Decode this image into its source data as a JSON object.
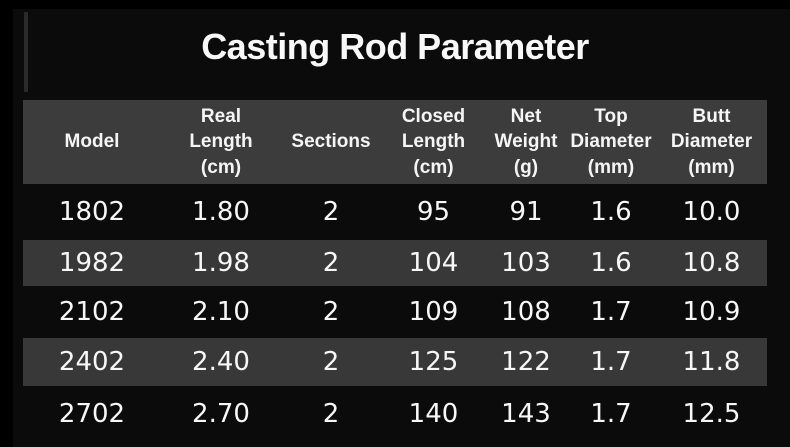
{
  "title": "Casting Rod Parameter",
  "colors": {
    "background": "#0b0b0b",
    "letterbox": "#000000",
    "header_band": "#3c3c3c",
    "stripe_band": "#383838",
    "text": "#f7f7f7"
  },
  "chart_data": {
    "type": "table",
    "title": "Casting Rod Parameter",
    "columns": [
      "Model",
      "Real\nLength\n(cm)",
      "Sections",
      "Closed\nLength\n(cm)",
      "Net\nWeight\n(g)",
      "Top\nDiameter\n(mm)",
      "Butt\nDiameter\n(mm)"
    ],
    "rows": [
      [
        "1802",
        "1.80",
        "2",
        "95",
        "91",
        "1.6",
        "10.0"
      ],
      [
        "1982",
        "1.98",
        "2",
        "104",
        "103",
        "1.6",
        "10.8"
      ],
      [
        "2102",
        "2.10",
        "2",
        "109",
        "108",
        "1.7",
        "10.9"
      ],
      [
        "2402",
        "2.40",
        "2",
        "125",
        "122",
        "1.7",
        "11.8"
      ],
      [
        "2702",
        "2.70",
        "2",
        "140",
        "143",
        "1.7",
        "12.5"
      ]
    ],
    "layout": {
      "striped_rows": [
        2,
        4
      ],
      "header_background": "#3c3c3c",
      "stripe_background": "#383838",
      "page_background": "#0b0b0b"
    }
  }
}
